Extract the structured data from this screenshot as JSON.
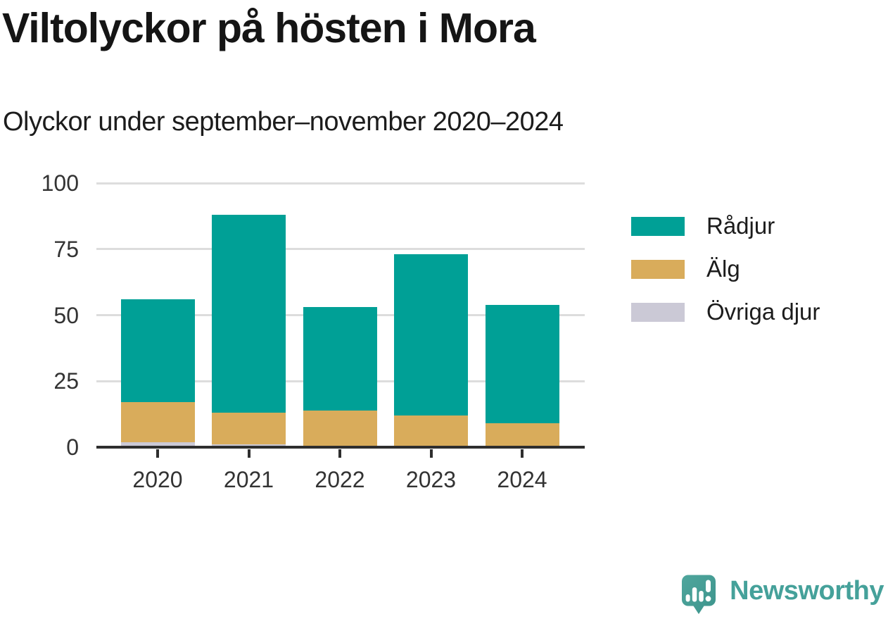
{
  "title": "Viltolyckor på hösten i Mora",
  "subtitle": "Olyckor under september–november 2020–2024",
  "chart_data": {
    "type": "bar",
    "stacked": true,
    "title": "Viltolyckor på hösten i Mora",
    "subtitle": "Olyckor under september–november 2020–2024",
    "categories": [
      "2020",
      "2021",
      "2022",
      "2023",
      "2024"
    ],
    "series": [
      {
        "name": "Rådjur",
        "color": "#00A096",
        "values": [
          39,
          75,
          39,
          61,
          45
        ]
      },
      {
        "name": "Älg",
        "color": "#D9AC5B",
        "values": [
          15,
          12,
          14,
          12,
          9
        ]
      },
      {
        "name": "Övriga djur",
        "color": "#CBC9D6",
        "values": [
          2,
          1,
          0,
          0,
          0
        ]
      }
    ],
    "stack_order_bottom_to_top": [
      "Övriga djur",
      "Älg",
      "Rådjur"
    ],
    "totals": [
      56,
      88,
      53,
      73,
      54
    ],
    "xlabel": "",
    "ylabel": "",
    "ylim": [
      0,
      100
    ],
    "yticks": [
      0,
      25,
      50,
      75,
      100
    ],
    "grid": true,
    "grid_color": "#DDDDDD",
    "axis_color": "#2E2E2E",
    "tick_label_color": "#333333",
    "legend_position": "right"
  },
  "branding": {
    "logo_text": "Newsworthy",
    "logo_icon": "newsworthy-speech-bubble-chart-icon",
    "logo_color": "#45A19A",
    "logo_bubble_color_light": "#4FA69D",
    "logo_bubble_color_dark": "#3D948C"
  }
}
